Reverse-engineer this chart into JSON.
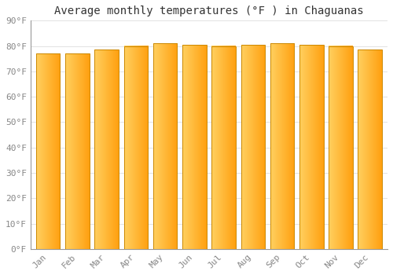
{
  "title": "Average monthly temperatures (°F ) in Chaguanas",
  "months": [
    "Jan",
    "Feb",
    "Mar",
    "Apr",
    "May",
    "Jun",
    "Jul",
    "Aug",
    "Sep",
    "Oct",
    "Nov",
    "Dec"
  ],
  "values": [
    77,
    77,
    78.5,
    80,
    81,
    80.5,
    80,
    80.5,
    81,
    80.5,
    80,
    78.5
  ],
  "ylim": [
    0,
    90
  ],
  "yticks": [
    0,
    10,
    20,
    30,
    40,
    50,
    60,
    70,
    80,
    90
  ],
  "ytick_labels": [
    "0°F",
    "10°F",
    "20°F",
    "30°F",
    "40°F",
    "50°F",
    "60°F",
    "70°F",
    "80°F",
    "90°F"
  ],
  "bar_color_left": "#FFD060",
  "bar_color_right": "#FFA010",
  "bar_outline_color": "#CC8800",
  "background_color": "#FFFFFF",
  "grid_color": "#DDDDDD",
  "title_fontsize": 10,
  "tick_fontsize": 8,
  "title_font": "monospace",
  "tick_font": "monospace",
  "bar_width": 0.82,
  "figsize": [
    5.0,
    3.5
  ],
  "dpi": 100
}
